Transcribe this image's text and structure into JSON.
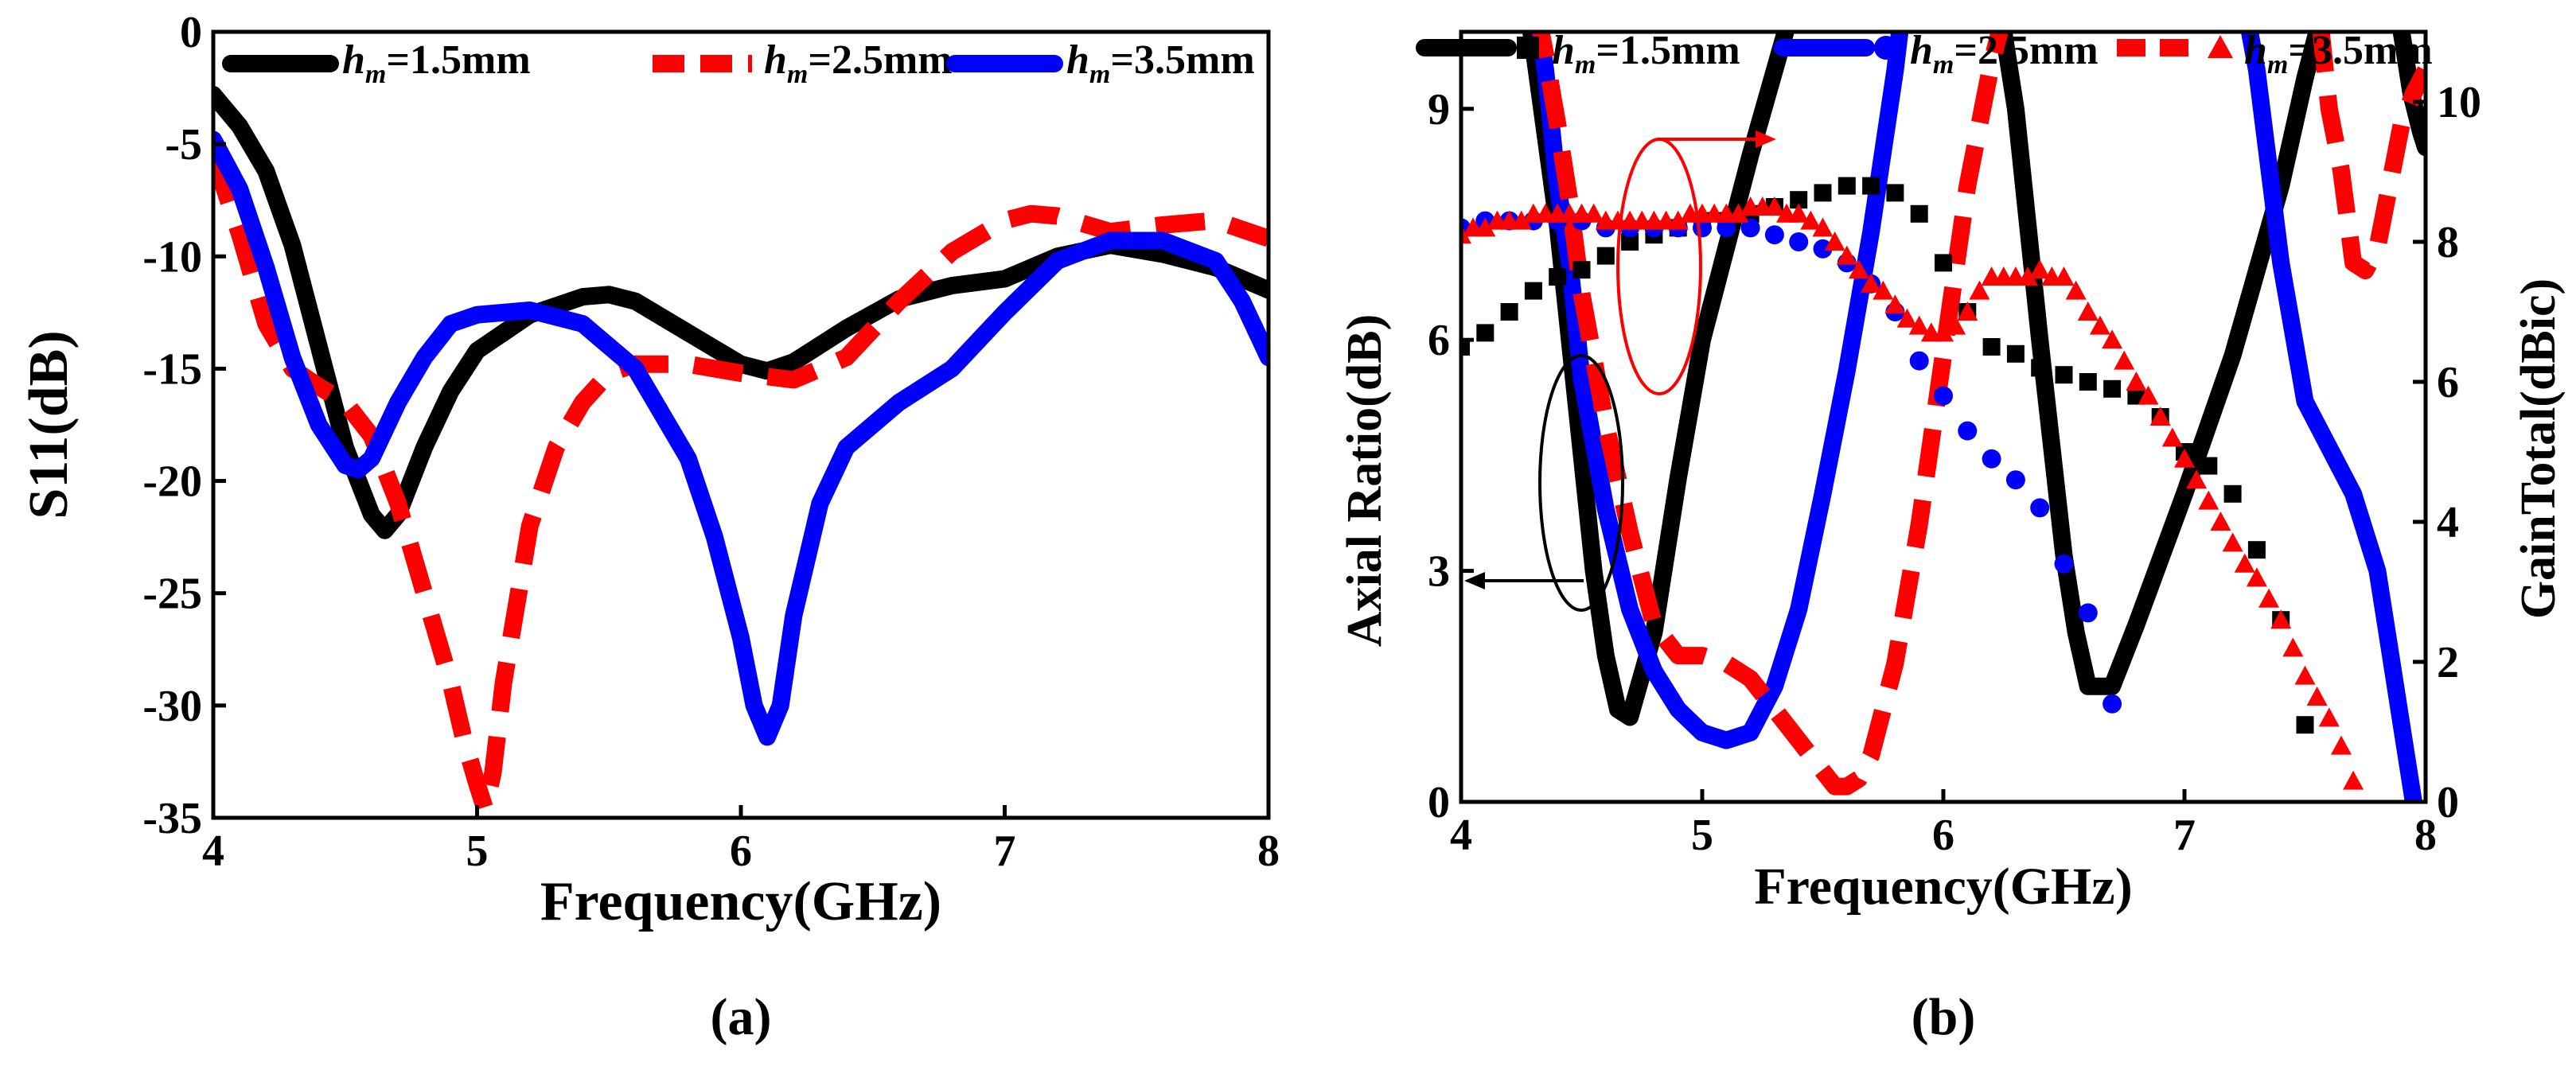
{
  "chart_data": [
    {
      "id": "a",
      "type": "line",
      "panel_caption": "(a)",
      "xlabel": "Frequency(GHz)",
      "ylabel": "S11(dB)",
      "xlim": [
        4,
        8
      ],
      "ylim": [
        -35,
        0
      ],
      "xticks": [
        4,
        5,
        6,
        7,
        8
      ],
      "xtick_labels": [
        "4",
        "5",
        "6",
        "7",
        "8"
      ],
      "yticks": [
        0,
        -5,
        -10,
        -15,
        -20,
        -25,
        -30,
        -35
      ],
      "ytick_labels": [
        "0",
        "-5",
        "-10",
        "-15",
        "-20",
        "-25",
        "-30",
        "-35"
      ],
      "legend_position": "top",
      "series": [
        {
          "key": "s15",
          "sym": "h",
          "sub": "m",
          "suffix": "=1.5mm",
          "color": "#000000",
          "style": "solid",
          "x": [
            4.0,
            4.1,
            4.2,
            4.3,
            4.4,
            4.5,
            4.6,
            4.65,
            4.7,
            4.8,
            4.9,
            5.0,
            5.2,
            5.4,
            5.5,
            5.6,
            5.8,
            6.0,
            6.1,
            6.2,
            6.4,
            6.6,
            6.8,
            7.0,
            7.2,
            7.4,
            7.6,
            7.8,
            8.0
          ],
          "y": [
            -2.8,
            -4.2,
            -6.2,
            -9.5,
            -14.0,
            -18.5,
            -21.5,
            -22.2,
            -21.5,
            -18.5,
            -16.0,
            -14.2,
            -12.6,
            -11.8,
            -11.7,
            -12.0,
            -13.4,
            -14.8,
            -15.1,
            -14.7,
            -13.2,
            -11.9,
            -11.3,
            -11.0,
            -10.0,
            -9.5,
            -9.9,
            -10.5,
            -11.5
          ]
        },
        {
          "key": "s25",
          "sym": "h",
          "sub": "m",
          "suffix": "=2.5mm",
          "color": "#ff0000",
          "style": "dashed",
          "x": [
            4.0,
            4.1,
            4.2,
            4.3,
            4.4,
            4.5,
            4.6,
            4.7,
            4.8,
            4.9,
            4.95,
            5.0,
            5.03,
            5.06,
            5.1,
            5.15,
            5.2,
            5.3,
            5.4,
            5.5,
            5.6,
            5.8,
            6.0,
            6.2,
            6.4,
            6.6,
            6.8,
            7.0,
            7.1,
            7.2,
            7.4,
            7.6,
            7.8,
            8.0
          ],
          "y": [
            -5.5,
            -9.0,
            -13.0,
            -15.0,
            -15.8,
            -16.5,
            -18.0,
            -21.0,
            -25.0,
            -29.0,
            -31.5,
            -33.5,
            -34.6,
            -33.0,
            -29.0,
            -25.5,
            -22.0,
            -18.5,
            -16.5,
            -15.2,
            -14.8,
            -14.8,
            -15.2,
            -15.5,
            -14.5,
            -12.0,
            -9.8,
            -8.4,
            -8.1,
            -8.2,
            -8.9,
            -8.6,
            -8.4,
            -9.2
          ]
        },
        {
          "key": "s35",
          "sym": "h",
          "sub": "m",
          "suffix": "=3.5mm",
          "color": "#0000ff",
          "style": "solid",
          "x": [
            4.0,
            4.1,
            4.2,
            4.3,
            4.4,
            4.5,
            4.55,
            4.6,
            4.7,
            4.8,
            4.9,
            5.0,
            5.2,
            5.4,
            5.6,
            5.8,
            5.9,
            6.0,
            6.05,
            6.1,
            6.15,
            6.2,
            6.3,
            6.4,
            6.6,
            6.8,
            7.0,
            7.2,
            7.4,
            7.6,
            7.8,
            7.9,
            8.0
          ],
          "y": [
            -4.8,
            -7.0,
            -10.5,
            -14.5,
            -17.5,
            -19.3,
            -19.5,
            -19.0,
            -16.5,
            -14.5,
            -13.0,
            -12.6,
            -12.4,
            -13.0,
            -15.0,
            -19.0,
            -22.5,
            -27.0,
            -30.0,
            -31.4,
            -30.0,
            -26.0,
            -21.0,
            -18.5,
            -16.5,
            -15.0,
            -12.5,
            -10.2,
            -9.3,
            -9.3,
            -10.2,
            -12.0,
            -14.5
          ]
        }
      ]
    },
    {
      "id": "b",
      "type": "line+scatter",
      "panel_caption": "(b)",
      "xlabel": "Frequency(GHz)",
      "ylabel": "Axial Ratio(dB)",
      "y2label": "GainTotal(dBic)",
      "xlim": [
        4,
        8
      ],
      "ylim": [
        0,
        10
      ],
      "y2lim": [
        0,
        11
      ],
      "xticks": [
        4,
        5,
        6,
        7,
        8
      ],
      "xtick_labels": [
        "4",
        "5",
        "6",
        "7",
        "8"
      ],
      "yticks": [
        0,
        3,
        6,
        9
      ],
      "ytick_labels": [
        "0",
        "3",
        "6",
        "9"
      ],
      "y2ticks": [
        0,
        2,
        4,
        6,
        8,
        10
      ],
      "y2tick_labels": [
        "0",
        "2",
        "4",
        "6",
        "8",
        "10"
      ],
      "legend_position": "top",
      "annotations": [
        "left ellipse with arrow pointing to left axis (Axial Ratio curves)",
        "right ellipse with arrow pointing to right axis (Gain markers)"
      ],
      "series": [
        {
          "key": "b15",
          "sym": "h",
          "sub": "m",
          "suffix": "=1.5mm",
          "color": "#000000",
          "style": "solid",
          "marker": "square",
          "ar_x": [
            4.25,
            4.3,
            4.4,
            4.5,
            4.55,
            4.6,
            4.65,
            4.7,
            4.8,
            4.9,
            5.0,
            5.2,
            5.4,
            5.5,
            5.6,
            5.7,
            6.0,
            6.1,
            6.2,
            6.3,
            6.4,
            6.5,
            6.55,
            6.6,
            6.7,
            6.8,
            7.0,
            7.2,
            7.4,
            7.5,
            7.6,
            7.66
          ],
          "ar_y": [
            10.8,
            9.8,
            7.5,
            4.5,
            3.0,
            1.9,
            1.2,
            1.1,
            2.2,
            4.2,
            6.0,
            8.4,
            10.6,
            11.5,
            12.2,
            12.6,
            12.6,
            12.0,
            11.0,
            9.0,
            6.0,
            3.2,
            2.2,
            1.5,
            1.5,
            2.3,
            4.0,
            5.8,
            8.0,
            9.4,
            10.6,
            11.3
          ],
          "ar2_x": [
            7.78,
            7.84,
            7.9,
            7.94,
            7.98,
            8.0
          ],
          "ar2_y": [
            11.3,
            10.8,
            10.0,
            9.2,
            8.7,
            8.5
          ],
          "gain_x": [
            4.0,
            4.1,
            4.2,
            4.3,
            4.4,
            4.5,
            4.6,
            4.7,
            4.8,
            4.9,
            5.0,
            5.1,
            5.2,
            5.3,
            5.4,
            5.5,
            5.6,
            5.7,
            5.8,
            5.9,
            6.0,
            6.1,
            6.2,
            6.3,
            6.4,
            6.5,
            6.6,
            6.7,
            6.8,
            6.9,
            7.0,
            7.1,
            7.2,
            7.3,
            7.4,
            7.5
          ],
          "gain_y": [
            6.5,
            6.7,
            7.0,
            7.3,
            7.5,
            7.6,
            7.8,
            8.0,
            8.1,
            8.2,
            8.3,
            8.3,
            8.4,
            8.5,
            8.6,
            8.7,
            8.8,
            8.8,
            8.7,
            8.4,
            7.7,
            7.0,
            6.5,
            6.4,
            6.2,
            6.1,
            6.0,
            5.9,
            5.8,
            5.5,
            5.0,
            4.8,
            4.4,
            3.6,
            2.6,
            1.1
          ]
        },
        {
          "key": "b25",
          "sym": "h",
          "sub": "m",
          "suffix": "=2.5mm",
          "color": "#0000ff",
          "style": "solid",
          "marker": "circle",
          "ar_x": [
            4.28,
            4.35,
            4.4,
            4.45,
            4.5,
            4.6,
            4.7,
            4.8,
            4.9,
            5.0,
            5.1,
            5.2,
            5.3,
            5.4,
            5.5,
            5.6,
            5.7,
            5.8,
            5.85,
            5.9
          ],
          "ar_y": [
            11.0,
            9.5,
            8.0,
            7.0,
            5.5,
            3.8,
            2.5,
            1.7,
            1.2,
            0.9,
            0.8,
            0.9,
            1.5,
            2.5,
            4.0,
            5.6,
            7.4,
            9.5,
            10.8,
            11.5
          ],
          "ar2_x": [
            7.2,
            7.3,
            7.4,
            7.5,
            7.6,
            7.7,
            7.8,
            7.85,
            7.9,
            7.95
          ],
          "ar2_y": [
            11.2,
            9.5,
            7.0,
            5.2,
            4.6,
            4.0,
            3.0,
            2.0,
            1.0,
            0.0
          ],
          "gain_x": [
            4.0,
            4.1,
            4.2,
            4.3,
            4.4,
            4.5,
            4.6,
            4.7,
            4.8,
            4.9,
            5.0,
            5.1,
            5.2,
            5.3,
            5.4,
            5.5,
            5.6,
            5.7,
            5.8,
            5.9,
            6.0,
            6.1,
            6.2,
            6.3,
            6.4,
            6.5,
            6.6,
            6.7
          ],
          "gain_y": [
            8.2,
            8.3,
            8.3,
            8.3,
            8.3,
            8.3,
            8.2,
            8.2,
            8.2,
            8.2,
            8.2,
            8.2,
            8.2,
            8.1,
            8.0,
            7.9,
            7.7,
            7.4,
            7.0,
            6.3,
            5.8,
            5.3,
            4.9,
            4.6,
            4.2,
            3.4,
            2.7,
            1.4
          ]
        },
        {
          "key": "b35",
          "sym": "h",
          "sub": "m",
          "suffix": "=3.5mm",
          "color": "#ff0000",
          "style": "dashed",
          "marker": "triangle",
          "ar_x": [
            4.28,
            4.3,
            4.35,
            4.4,
            4.45,
            4.5,
            4.6,
            4.7,
            4.8,
            4.9,
            5.0,
            5.1,
            5.2,
            5.3,
            5.4,
            5.5,
            5.55,
            5.6,
            5.65,
            5.7,
            5.8,
            5.9,
            6.0,
            6.1,
            6.2,
            6.25,
            6.3,
            6.35,
            6.4
          ],
          "ar_y": [
            11.2,
            10.5,
            9.7,
            8.8,
            7.8,
            6.6,
            4.9,
            3.5,
            2.3,
            1.9,
            1.9,
            1.8,
            1.6,
            1.2,
            0.8,
            0.4,
            0.2,
            0.2,
            0.3,
            0.6,
            1.8,
            3.6,
            5.8,
            8.0,
            9.6,
            10.2,
            10.6,
            11.0,
            11.4
          ],
          "ar2_x": [
            7.5,
            7.55,
            7.6,
            7.65,
            7.7,
            7.75,
            7.8,
            7.85,
            7.9,
            7.95,
            8.0
          ],
          "ar2_y": [
            11.0,
            10.5,
            9.0,
            8.2,
            7.0,
            6.9,
            7.2,
            8.0,
            8.8,
            9.2,
            9.5
          ],
          "gain_x": [
            4.0,
            4.05,
            4.1,
            4.15,
            4.2,
            4.25,
            4.3,
            4.35,
            4.4,
            4.45,
            4.5,
            4.55,
            4.6,
            4.65,
            4.7,
            4.75,
            4.8,
            4.85,
            4.9,
            4.95,
            5.0,
            5.05,
            5.1,
            5.15,
            5.2,
            5.25,
            5.3,
            5.35,
            5.4,
            5.45,
            5.5,
            5.55,
            5.6,
            5.65,
            5.7,
            5.75,
            5.8,
            5.85,
            5.9,
            5.95,
            6.0,
            6.05,
            6.1,
            6.15,
            6.2,
            6.25,
            6.3,
            6.35,
            6.4,
            6.45,
            6.5,
            6.55,
            6.6,
            6.65,
            6.7,
            6.75,
            6.8,
            6.85,
            6.9,
            6.95,
            7.0,
            7.05,
            7.1,
            7.15,
            7.2,
            7.25,
            7.3,
            7.35,
            7.4,
            7.45,
            7.5,
            7.55,
            7.6,
            7.65,
            7.7
          ],
          "gain_y": [
            8.1,
            8.2,
            8.2,
            8.3,
            8.3,
            8.3,
            8.4,
            8.4,
            8.4,
            8.4,
            8.4,
            8.4,
            8.3,
            8.3,
            8.3,
            8.3,
            8.3,
            8.3,
            8.3,
            8.4,
            8.4,
            8.4,
            8.4,
            8.4,
            8.5,
            8.5,
            8.5,
            8.4,
            8.4,
            8.3,
            8.2,
            8.0,
            7.8,
            7.6,
            7.4,
            7.3,
            7.1,
            6.9,
            6.8,
            6.7,
            6.7,
            6.8,
            7.0,
            7.3,
            7.5,
            7.5,
            7.5,
            7.5,
            7.6,
            7.5,
            7.5,
            7.3,
            7.0,
            6.8,
            6.6,
            6.3,
            6.0,
            5.8,
            5.5,
            5.2,
            4.9,
            4.6,
            4.3,
            4.0,
            3.7,
            3.4,
            3.2,
            2.9,
            2.6,
            2.2,
            1.8,
            1.5,
            1.2,
            0.8,
            0.3
          ]
        }
      ]
    }
  ]
}
